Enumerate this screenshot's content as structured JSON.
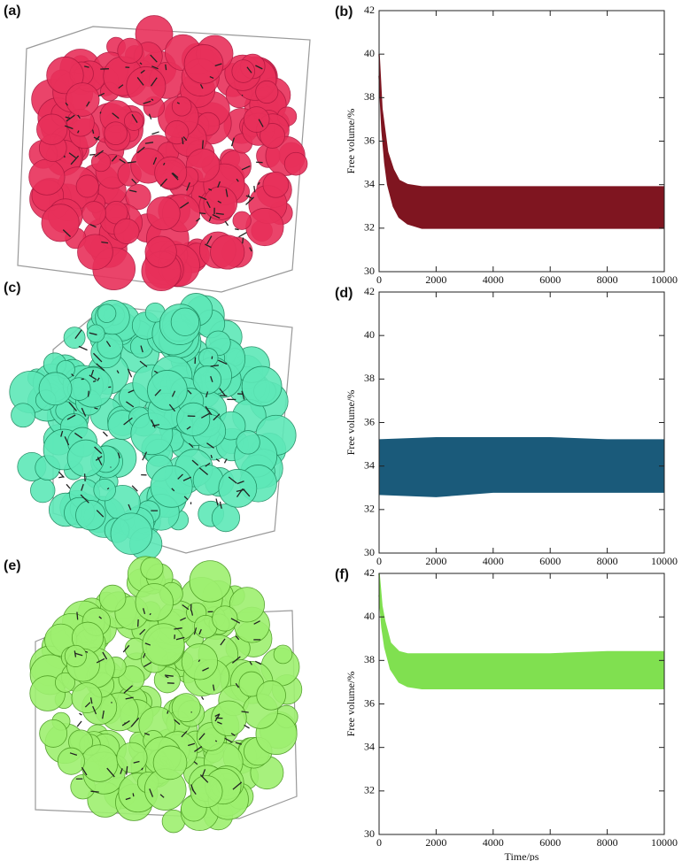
{
  "image_labels": [
    "(a)",
    "(c)",
    "(e)"
  ],
  "chart_data": [
    {
      "type": "range-area",
      "label": "(b)",
      "ylabel": "Free volume/%",
      "color": "#7f1520",
      "x": [
        0,
        100,
        200,
        300,
        500,
        700,
        1000,
        1500,
        2000,
        4000,
        6000,
        8000,
        10000
      ],
      "upper": [
        40,
        37.5,
        36.5,
        35.5,
        34.7,
        34.2,
        34,
        33.9,
        33.9,
        33.9,
        33.9,
        33.9,
        33.9
      ],
      "lower": [
        39,
        36.5,
        35,
        34,
        33,
        32.5,
        32.2,
        32,
        32,
        32,
        32,
        32,
        32
      ],
      "xlim": [
        0,
        10000
      ],
      "xticks": [
        0,
        2000,
        4000,
        6000,
        8000,
        10000
      ],
      "ylim": [
        30,
        42
      ],
      "yticks": [
        30,
        32,
        34,
        36,
        38,
        40,
        42
      ]
    },
    {
      "type": "range-area",
      "label": "(d)",
      "ylabel": "Free volume/%",
      "color": "#1a5a7a",
      "x": [
        0,
        2000,
        4000,
        6000,
        8000,
        10000
      ],
      "upper": [
        35.2,
        35.3,
        35.3,
        35.3,
        35.2,
        35.2
      ],
      "lower": [
        32.7,
        32.6,
        32.8,
        32.8,
        32.8,
        32.8
      ],
      "xlim": [
        0,
        10000
      ],
      "xticks": [
        0,
        2000,
        4000,
        6000,
        8000,
        10000
      ],
      "ylim": [
        30,
        42
      ],
      "yticks": [
        30,
        32,
        34,
        36,
        38,
        40,
        42
      ]
    },
    {
      "type": "range-area",
      "label": "(f)",
      "ylabel": "Free volume/%",
      "xlabel": "Time/ps",
      "color": "#80e050",
      "x": [
        0,
        100,
        200,
        400,
        700,
        1000,
        1500,
        2000,
        4000,
        6000,
        8000,
        10000
      ],
      "upper": [
        42,
        40.5,
        39.8,
        38.8,
        38.4,
        38.3,
        38.3,
        38.3,
        38.3,
        38.3,
        38.4,
        38.4
      ],
      "lower": [
        41,
        39.5,
        38.6,
        37.6,
        37,
        36.8,
        36.7,
        36.7,
        36.7,
        36.7,
        36.7,
        36.7
      ],
      "xlim": [
        0,
        10000
      ],
      "xticks": [
        0,
        2000,
        4000,
        6000,
        8000,
        10000
      ],
      "ylim": [
        30,
        42
      ],
      "yticks": [
        30,
        32,
        34,
        36,
        38,
        40,
        42
      ]
    }
  ]
}
